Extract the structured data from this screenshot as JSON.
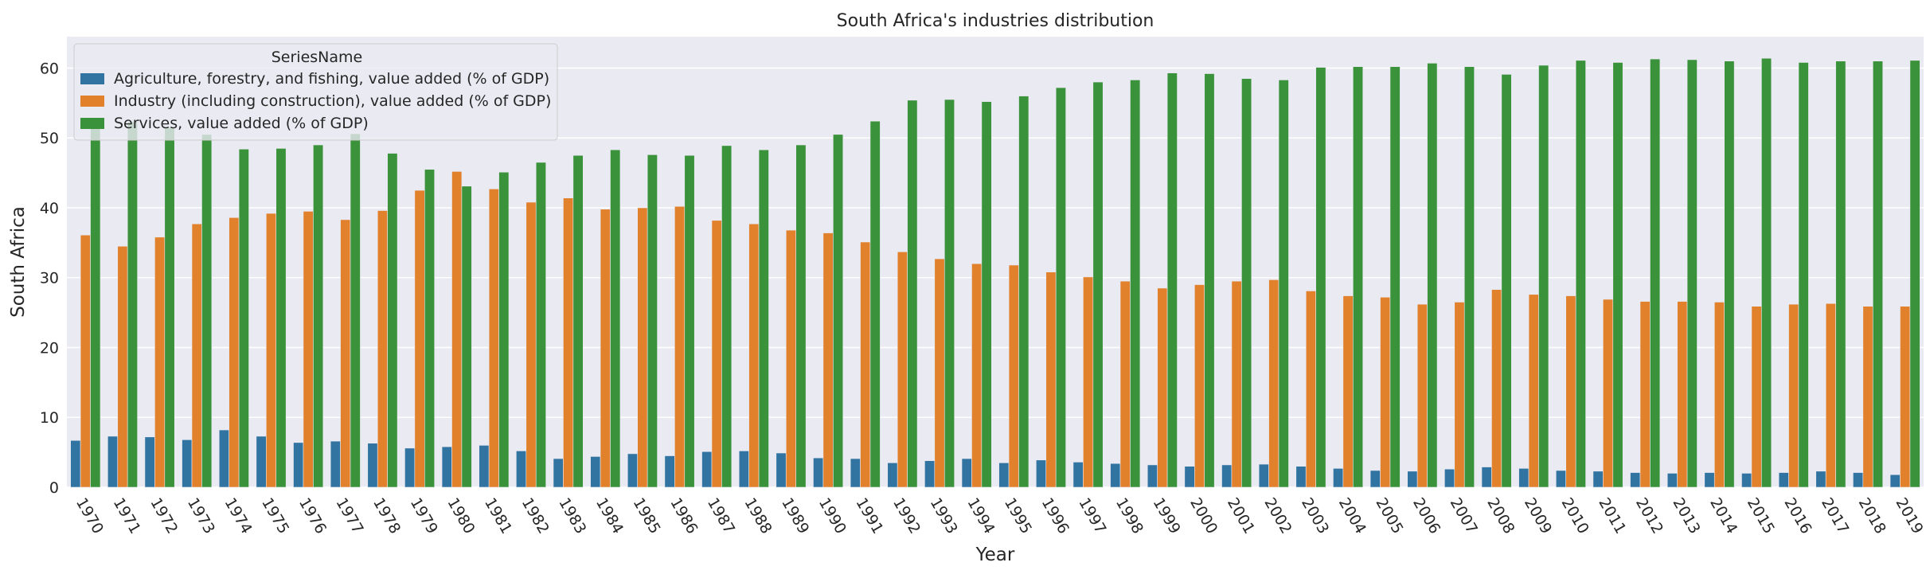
{
  "chart_data": {
    "type": "bar",
    "title": "South Africa's industries distribution",
    "xlabel": "Year",
    "ylabel": "South Africa",
    "ylim": [
      0,
      64.5
    ],
    "yticks": [
      0,
      10,
      20,
      30,
      40,
      50,
      60
    ],
    "grid": true,
    "legend": {
      "title": "SeriesName",
      "placement": "top-left"
    },
    "categories": [
      "1970",
      "1971",
      "1972",
      "1973",
      "1974",
      "1975",
      "1976",
      "1977",
      "1978",
      "1979",
      "1980",
      "1981",
      "1982",
      "1983",
      "1984",
      "1985",
      "1986",
      "1987",
      "1988",
      "1989",
      "1990",
      "1991",
      "1992",
      "1993",
      "1994",
      "1995",
      "1996",
      "1997",
      "1998",
      "1999",
      "2000",
      "2001",
      "2002",
      "2003",
      "2004",
      "2005",
      "2006",
      "2007",
      "2008",
      "2009",
      "2010",
      "2011",
      "2012",
      "2013",
      "2014",
      "2015",
      "2016",
      "2017",
      "2018",
      "2019"
    ],
    "series": [
      {
        "name": "Agriculture, forestry, and fishing, value added (% of GDP)",
        "color": "#3274a1",
        "values": [
          6.7,
          7.3,
          7.2,
          6.8,
          8.2,
          7.3,
          6.4,
          6.6,
          6.3,
          5.6,
          5.8,
          6.0,
          5.2,
          4.1,
          4.4,
          4.8,
          4.5,
          5.1,
          5.2,
          4.9,
          4.2,
          4.1,
          3.5,
          3.8,
          4.1,
          3.5,
          3.9,
          3.6,
          3.4,
          3.2,
          3.0,
          3.2,
          3.3,
          3.0,
          2.7,
          2.4,
          2.3,
          2.6,
          2.9,
          2.7,
          2.4,
          2.3,
          2.1,
          2.0,
          2.1,
          2.0,
          2.1,
          2.3,
          2.1,
          1.8
        ]
      },
      {
        "name": "Industry (including construction), value added (% of GDP)",
        "color": "#e1812c",
        "values": [
          36.1,
          34.5,
          35.8,
          37.7,
          38.6,
          39.2,
          39.5,
          38.3,
          39.6,
          42.5,
          45.2,
          42.7,
          40.8,
          41.4,
          39.8,
          40.0,
          40.2,
          38.2,
          37.7,
          36.8,
          36.4,
          35.1,
          33.7,
          32.7,
          32.0,
          31.8,
          30.8,
          30.1,
          29.5,
          28.5,
          29.0,
          29.5,
          29.7,
          28.1,
          27.4,
          27.2,
          26.2,
          26.5,
          28.3,
          27.6,
          27.4,
          26.9,
          26.6,
          26.6,
          26.5,
          25.9,
          26.2,
          26.3,
          25.9,
          25.9
        ]
      },
      {
        "name": "Services, value added (% of GDP)",
        "color": "#3a923a",
        "values": [
          52.0,
          52.3,
          51.5,
          50.5,
          48.4,
          48.5,
          49.0,
          50.6,
          47.8,
          45.5,
          43.1,
          45.1,
          46.5,
          47.5,
          48.3,
          47.6,
          47.5,
          48.9,
          48.3,
          49.0,
          50.5,
          52.4,
          55.4,
          55.5,
          55.2,
          56.0,
          57.2,
          58.0,
          58.3,
          59.3,
          59.2,
          58.5,
          58.3,
          60.1,
          60.2,
          60.2,
          60.7,
          60.2,
          59.1,
          60.4,
          61.1,
          60.8,
          61.3,
          61.2,
          61.0,
          61.4,
          60.8,
          61.0,
          61.0,
          61.1
        ]
      }
    ]
  }
}
